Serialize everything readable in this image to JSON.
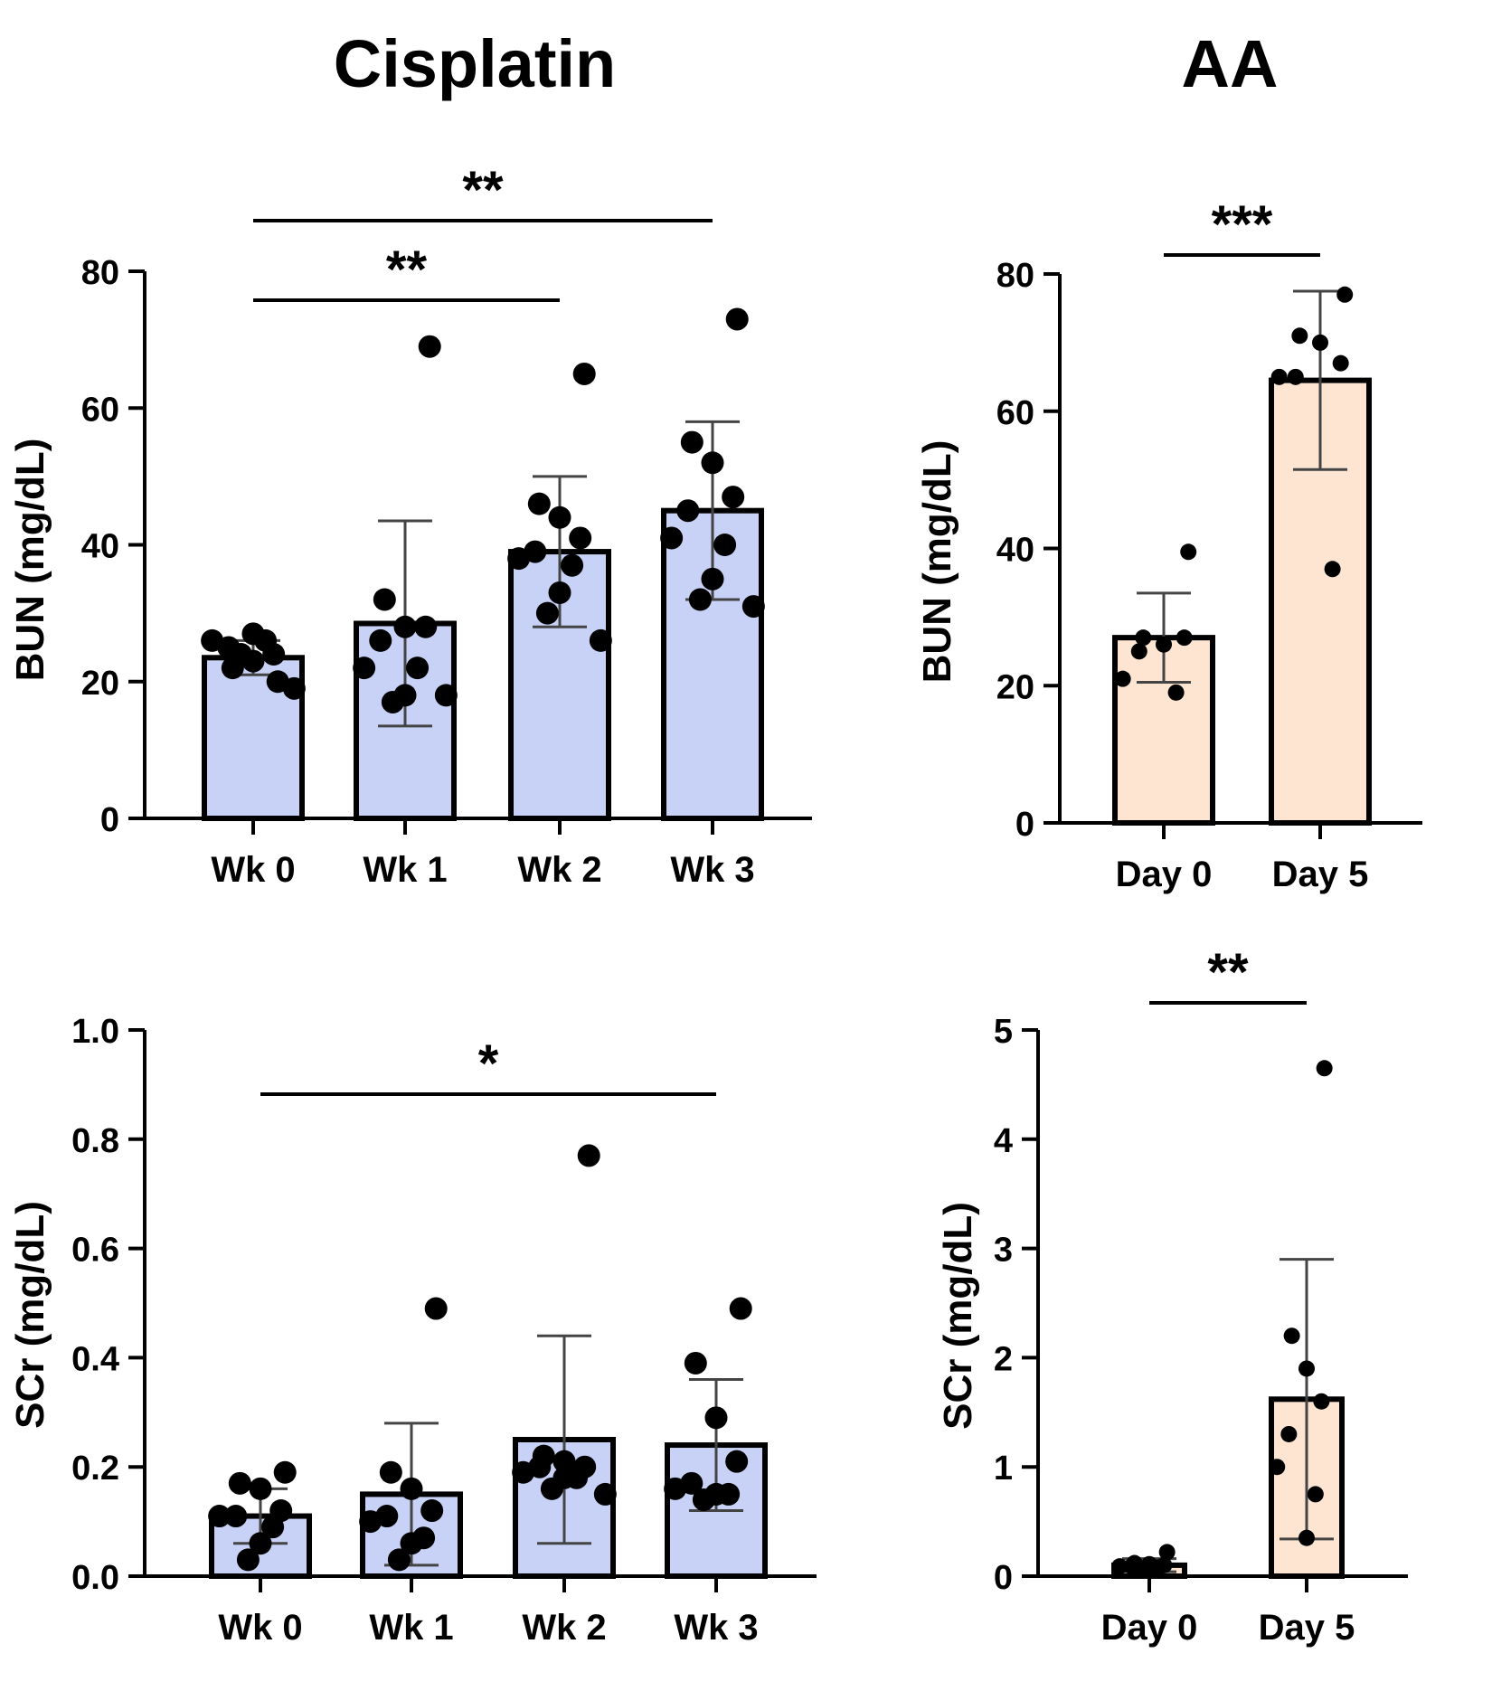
{
  "titles": {
    "left": "Cisplatin",
    "right": "AA"
  },
  "chart_data": [
    {
      "id": "cis_bun",
      "type": "bar",
      "ylabel": "BUN (mg/dL)",
      "ylim": [
        0,
        80
      ],
      "yticks": [
        0,
        20,
        40,
        60,
        80
      ],
      "ytick_labels": [
        "0",
        "20",
        "40",
        "60",
        "80"
      ],
      "categories": [
        "Wk 0",
        "Wk 1",
        "Wk 2",
        "Wk 3"
      ],
      "values": [
        23.5,
        28.5,
        39,
        45
      ],
      "sd": [
        2.5,
        15,
        11,
        13
      ],
      "points": [
        [
          20,
          22,
          23,
          24,
          25,
          26,
          26,
          27,
          24,
          19
        ],
        [
          69,
          32,
          28,
          28,
          26,
          22,
          22,
          18,
          17,
          18
        ],
        [
          65,
          46,
          44,
          41,
          39,
          38,
          37,
          33,
          30,
          26
        ],
        [
          73,
          55,
          52,
          47,
          45,
          41,
          40,
          35,
          32,
          31
        ]
      ],
      "fill": "#c8d2f6",
      "significance": [
        {
          "from": 0,
          "to": 3,
          "label": "**"
        },
        {
          "from": 0,
          "to": 2,
          "label": "**"
        }
      ]
    },
    {
      "id": "aa_bun",
      "type": "bar",
      "ylabel": "BUN (mg/dL)",
      "ylim": [
        0,
        80
      ],
      "yticks": [
        0,
        20,
        40,
        60,
        80
      ],
      "ytick_labels": [
        "0",
        "20",
        "40",
        "60",
        "80"
      ],
      "categories": [
        "Day 0",
        "Day 5"
      ],
      "values": [
        27,
        64.5
      ],
      "sd": [
        6.5,
        13
      ],
      "points": [
        [
          39.5,
          27,
          26,
          27,
          25,
          21,
          19
        ],
        [
          77,
          71,
          70,
          67,
          65,
          65,
          37
        ]
      ],
      "fill": "#fde5d2",
      "significance": [
        {
          "from": 0,
          "to": 1,
          "label": "***"
        }
      ]
    },
    {
      "id": "cis_scr",
      "type": "bar",
      "ylabel": "SCr (mg/dL)",
      "ylim": [
        0,
        1.0
      ],
      "yticks": [
        0,
        0.2,
        0.4,
        0.6,
        0.8,
        1.0
      ],
      "ytick_labels": [
        "0.0",
        "0.2",
        "0.4",
        "0.6",
        "0.8",
        "1.0"
      ],
      "categories": [
        "Wk 0",
        "Wk 1",
        "Wk 2",
        "Wk 3"
      ],
      "values": [
        0.11,
        0.15,
        0.25,
        0.24
      ],
      "sd": [
        0.05,
        0.13,
        0.19,
        0.12
      ],
      "points": [
        [
          0.19,
          0.17,
          0.16,
          0.12,
          0.11,
          0.11,
          0.09,
          0.06,
          0.03
        ],
        [
          0.49,
          0.19,
          0.16,
          0.12,
          0.11,
          0.1,
          0.07,
          0.06,
          0.03
        ],
        [
          0.77,
          0.22,
          0.21,
          0.2,
          0.2,
          0.19,
          0.18,
          0.18,
          0.16,
          0.15
        ],
        [
          0.49,
          0.39,
          0.29,
          0.21,
          0.17,
          0.16,
          0.15,
          0.15,
          0.14
        ]
      ],
      "fill": "#c8d2f6",
      "significance": [
        {
          "from": 0,
          "to": 3,
          "label": "*"
        }
      ]
    },
    {
      "id": "aa_scr",
      "type": "bar",
      "ylabel": "SCr (mg/dL)",
      "ylim": [
        0,
        5
      ],
      "yticks": [
        0,
        1,
        2,
        3,
        4,
        5
      ],
      "ytick_labels": [
        "0",
        "1",
        "2",
        "3",
        "4",
        "5"
      ],
      "categories": [
        "Day 0",
        "Day 5"
      ],
      "values": [
        0.1,
        1.62
      ],
      "sd": [
        0.06,
        1.28
      ],
      "points": [
        [
          0.22,
          0.12,
          0.11,
          0.1,
          0.09,
          0.09,
          0.08,
          0.07,
          0.05
        ],
        [
          4.65,
          2.2,
          1.9,
          1.6,
          1.3,
          1.0,
          0.75,
          0.35
        ]
      ],
      "fill": "#fde5d2",
      "significance": [
        {
          "from": 0,
          "to": 1,
          "label": "**"
        }
      ]
    }
  ]
}
